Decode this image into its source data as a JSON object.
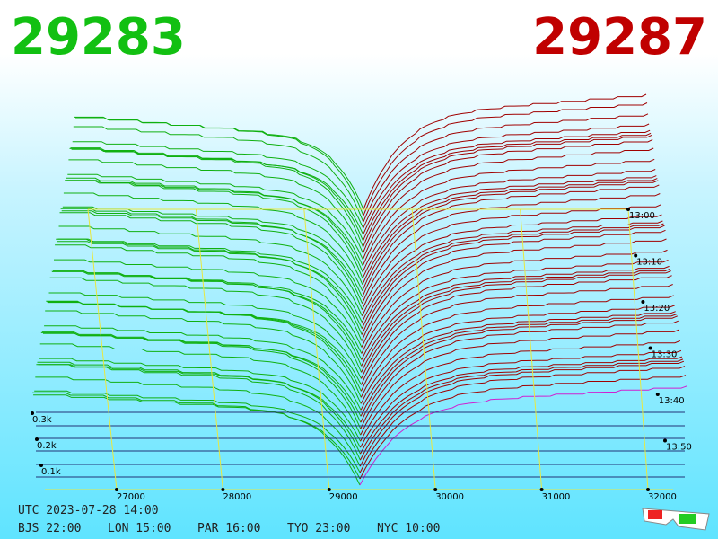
{
  "header": {
    "bid": "29283",
    "ask": "29287"
  },
  "price_axis": {
    "ticks": [
      "27000",
      "28000",
      "29000",
      "30000",
      "31000",
      "32000"
    ]
  },
  "depth_axis": {
    "ticks": [
      "0.3k",
      "0.2k",
      "0.1k"
    ]
  },
  "time_axis": {
    "ticks": [
      "13:00",
      "13:10",
      "13:20",
      "13:30",
      "13:40",
      "13:50"
    ]
  },
  "clock": {
    "utc": "UTC 2023-07-28 14:00",
    "zones": [
      "BJS 22:00",
      "LON 15:00",
      "PAR 16:00",
      "TYO 23:00",
      "NYC 10:00"
    ]
  }
}
